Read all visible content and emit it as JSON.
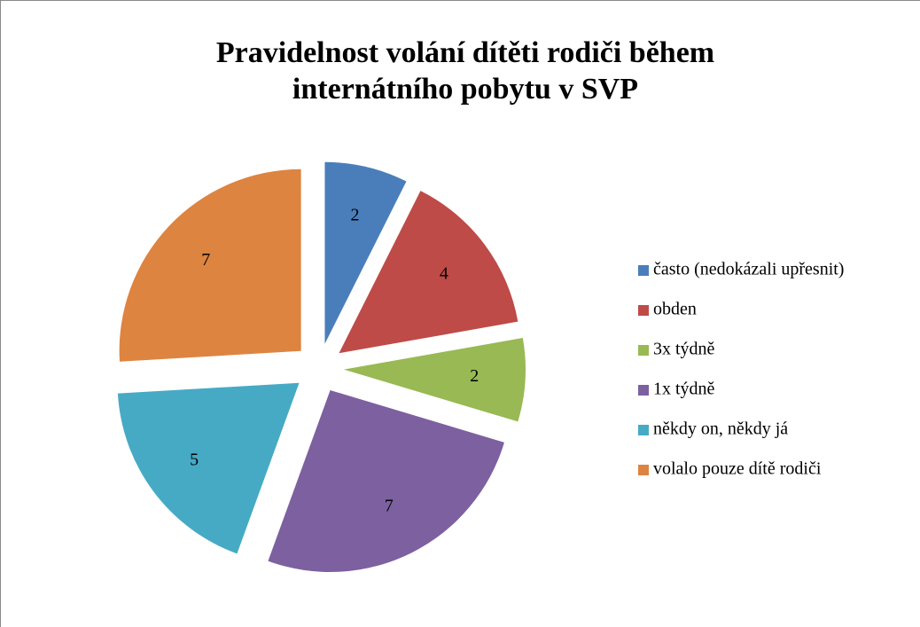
{
  "chart_data": {
    "type": "pie",
    "title": "Pravidelnost volání dítěti rodiči během internátního pobytu v SVP",
    "categories": [
      "často (nedokázali upřesnit)",
      "obden",
      "3x týdně",
      "1x týdně",
      "někdy on, někdy já",
      "volalo pouze dítě rodiči"
    ],
    "values": [
      2,
      4,
      2,
      7,
      5,
      7
    ],
    "colors": [
      "#4a7ebb",
      "#be4b48",
      "#98b954",
      "#7d60a0",
      "#46aac5",
      "#dd8440"
    ],
    "legend": "right"
  }
}
